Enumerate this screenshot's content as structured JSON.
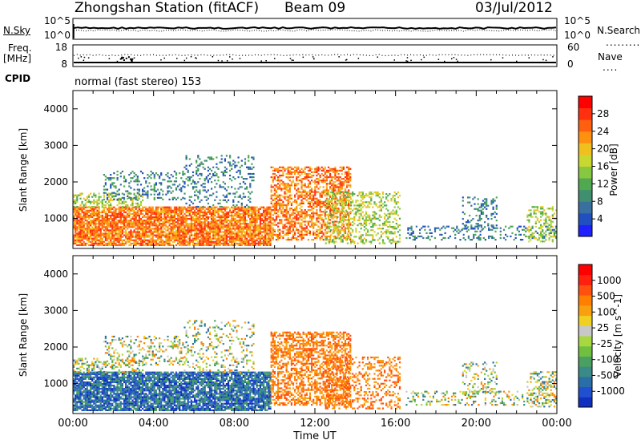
{
  "header": {
    "station": "Zhongshan Station (fitACF)",
    "beam": "Beam 09",
    "date": "03/Jul/2012"
  },
  "side_labels": {
    "nsky": "N.Sky",
    "nsearch": "N.Search",
    "freq_line1": "Freq.",
    "freq_line2": "[MHz]",
    "nave": "Nave",
    "cpid": "CPID"
  },
  "cpid_text": "normal (fast stereo) 153",
  "chart_data": [
    {
      "type": "line",
      "name": "noise panel",
      "left_ticks": [
        "10^5",
        "10^0"
      ],
      "right_ticks": [
        "10^5",
        "10^0"
      ],
      "note_series": [
        "N.Sky",
        "N.Search"
      ]
    },
    {
      "type": "line",
      "name": "frequency / nave panel",
      "left_ticks": [
        "18",
        "8"
      ],
      "right_ticks": [
        "60",
        "0"
      ],
      "series": [
        "Freq. [MHz]",
        "Nave"
      ]
    },
    {
      "type": "heatmap",
      "name": "power",
      "ylabel": "Slant Range [km]",
      "yticks": [
        "4000",
        "3000",
        "2000",
        "1000"
      ],
      "ylim": [
        180,
        4500
      ],
      "xlabel": "Time UT",
      "xticks": [
        "00:00",
        "04:00",
        "08:00",
        "12:00",
        "16:00",
        "20:00",
        "00:00"
      ],
      "xlim_hours": [
        0,
        24
      ],
      "colorbar": {
        "label": "Power [dB]",
        "ticks": [
          "28",
          "24",
          "20",
          "16",
          "12",
          "8",
          "4"
        ],
        "range": [
          0,
          30
        ],
        "colors": [
          "#2020ff",
          "#2050c0",
          "#3a70a0",
          "#3f8f70",
          "#50a850",
          "#88c840",
          "#c8d830",
          "#f0c020",
          "#ff9010",
          "#ff6010",
          "#ff3010",
          "#ff0000"
        ]
      }
    },
    {
      "type": "heatmap",
      "name": "velocity",
      "ylabel": "Slant Range [km]",
      "yticks": [
        "4000",
        "3000",
        "2000",
        "1000"
      ],
      "ylim": [
        180,
        4500
      ],
      "xlabel": "Time UT",
      "xticks": [
        "00:00",
        "04:00",
        "08:00",
        "12:00",
        "16:00",
        "20:00",
        "00:00"
      ],
      "xlim_hours": [
        0,
        24
      ],
      "colorbar": {
        "label": "Velocity [m s^-1]",
        "ticks": [
          "1000",
          "500",
          "100",
          "25",
          "-25",
          "-100",
          "-500",
          "-1000"
        ],
        "colors": [
          "#1030c0",
          "#2050d0",
          "#2a6ea8",
          "#3a8a88",
          "#4aa060",
          "#70c040",
          "#a8d840",
          "#c8c8c8",
          "#f0d020",
          "#f8a010",
          "#ff8000",
          "#ff5010",
          "#ff2010",
          "#ff0000"
        ]
      }
    }
  ]
}
